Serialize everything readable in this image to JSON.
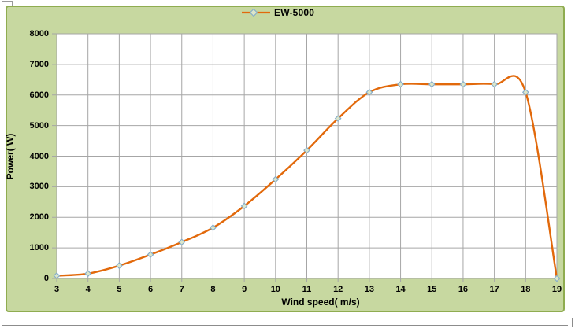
{
  "chart_data": {
    "type": "line",
    "title": "",
    "xlabel": "Wind speed( m/s)",
    "ylabel": "Power( W)",
    "x": [
      3,
      4,
      5,
      6,
      7,
      8,
      9,
      10,
      11,
      12,
      13,
      14,
      15,
      16,
      17,
      18,
      19
    ],
    "series": [
      {
        "name": "EW-5000",
        "values": [
          90,
          160,
          420,
          780,
          1190,
          1660,
          2370,
          3240,
          4190,
          5230,
          6090,
          6350,
          6350,
          6350,
          6350,
          6090,
          0
        ]
      }
    ],
    "xlim": [
      3,
      19
    ],
    "ylim": [
      0,
      8000
    ],
    "x_tick_step": 1,
    "y_tick_step": 1000,
    "x_ticks": [
      3,
      4,
      5,
      6,
      7,
      8,
      9,
      10,
      11,
      12,
      13,
      14,
      15,
      16,
      17,
      18,
      19
    ],
    "y_ticks": [
      0,
      1000,
      2000,
      3000,
      4000,
      5000,
      6000,
      7000,
      8000
    ],
    "grid": true,
    "smooth": true,
    "legend_position": "top-center",
    "marker": "diamond",
    "colors": {
      "line": "#e2690b",
      "marker_fill": "#dce6c9",
      "marker_stroke": "#83accb",
      "chart_bg": "#c7d8a0",
      "chart_border": "#8fac50",
      "plot_bg": "#ffffff",
      "gridline": "#a6a6a6",
      "text": "#000000"
    }
  }
}
